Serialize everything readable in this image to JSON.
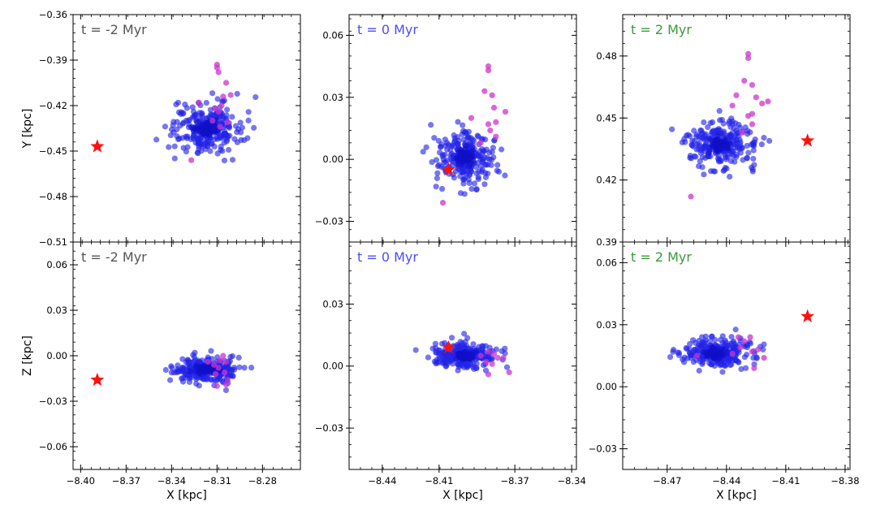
{
  "colors": {
    "gray_title": "#555555",
    "blue_title": "#4c4cff",
    "green_title": "#3a9a3a",
    "blue_points": "#2323e8",
    "magenta_points": "#cc33cc",
    "star": "#ff1010"
  },
  "chart_data": [
    {
      "type": "scatter",
      "title": "t = -2 Myr",
      "title_color": "gray_title",
      "xlabel": "",
      "ylabel": "Y [kpc]",
      "xlim": [
        -8.405,
        -8.255
      ],
      "ylim": [
        -0.51,
        -0.36
      ],
      "xticks": [],
      "xtick_labels": [],
      "yticks": [
        -0.36,
        -0.39,
        -0.42,
        -0.45,
        -0.48,
        -0.51
      ],
      "ytick_labels": [
        "−0.36",
        "−0.39",
        "−0.42",
        "−0.45",
        "−0.48",
        "−0.51"
      ],
      "blue_center": [
        -8.317,
        -0.435
      ],
      "blue_spread": [
        0.012,
        0.0085
      ],
      "magenta_points": [
        [
          -8.31,
          -0.393
        ],
        [
          -8.31,
          -0.395
        ],
        [
          -8.309,
          -0.398
        ],
        [
          -8.304,
          -0.405
        ],
        [
          -8.306,
          -0.414
        ],
        [
          -8.301,
          -0.413
        ],
        [
          -8.307,
          -0.42
        ],
        [
          -8.311,
          -0.422
        ],
        [
          -8.309,
          -0.424
        ],
        [
          -8.322,
          -0.418
        ],
        [
          -8.313,
          -0.43
        ],
        [
          -8.303,
          -0.431
        ],
        [
          -8.327,
          -0.456
        ],
        [
          -8.308,
          -0.434
        ]
      ],
      "star": [
        -8.389,
        -0.447
      ]
    },
    {
      "type": "scatter",
      "title": "t = 0 Myr",
      "title_color": "blue_title",
      "xlabel": "",
      "ylabel": "",
      "xlim": [
        -8.4575,
        -8.3375
      ],
      "ylim": [
        -0.04,
        0.07
      ],
      "xticks": [],
      "xtick_labels": [],
      "yticks": [
        0.06,
        0.03,
        0.0,
        -0.03
      ],
      "ytick_labels": [
        "0.06",
        "0.03",
        "0.00",
        "−0.03"
      ],
      "blue_center": [
        -8.396,
        0.001
      ],
      "blue_spread": [
        0.0075,
        0.0065
      ],
      "magenta_points": [
        [
          -8.384,
          0.045
        ],
        [
          -8.384,
          0.043
        ],
        [
          -8.386,
          0.033
        ],
        [
          -8.382,
          0.031
        ],
        [
          -8.381,
          0.025
        ],
        [
          -8.375,
          0.023
        ],
        [
          -8.38,
          0.018
        ],
        [
          -8.384,
          0.017
        ],
        [
          -8.383,
          0.014
        ],
        [
          -8.393,
          0.02
        ],
        [
          -8.38,
          0.011
        ],
        [
          -8.388,
          0.008
        ],
        [
          -8.408,
          -0.021
        ]
      ],
      "star": [
        -8.405,
        -0.005
      ]
    },
    {
      "type": "scatter",
      "title": "t = 2 Myr",
      "title_color": "green_title",
      "xlabel": "",
      "ylabel": "",
      "xlim": [
        -8.4925,
        -8.3775
      ],
      "ylim": [
        0.39,
        0.5
      ],
      "xticks": [],
      "xtick_labels": [],
      "yticks": [
        0.48,
        0.45,
        0.42,
        0.39
      ],
      "ytick_labels": [
        "0.48",
        "0.45",
        "0.42",
        "0.39"
      ],
      "blue_center": [
        -8.443,
        0.437
      ],
      "blue_spread": [
        0.009,
        0.006
      ],
      "magenta_points": [
        [
          -8.429,
          0.481
        ],
        [
          -8.429,
          0.479
        ],
        [
          -8.431,
          0.468
        ],
        [
          -8.427,
          0.466
        ],
        [
          -8.425,
          0.46
        ],
        [
          -8.419,
          0.458
        ],
        [
          -8.422,
          0.457
        ],
        [
          -8.435,
          0.461
        ],
        [
          -8.437,
          0.456
        ],
        [
          -8.427,
          0.452
        ],
        [
          -8.429,
          0.451
        ],
        [
          -8.432,
          0.443
        ],
        [
          -8.427,
          0.447
        ],
        [
          -8.458,
          0.412
        ]
      ],
      "star": [
        -8.399,
        0.439
      ]
    },
    {
      "type": "scatter",
      "title": "t = -2 Myr",
      "title_color": "gray_title",
      "xlabel": "X [kpc]",
      "ylabel": "Z [kpc]",
      "xlim": [
        -8.405,
        -8.255
      ],
      "ylim": [
        -0.075,
        0.075
      ],
      "xticks": [
        -8.4,
        -8.37,
        -8.34,
        -8.31,
        -8.28
      ],
      "xtick_labels": [
        "−8.40",
        "−8.37",
        "−8.34",
        "−8.31",
        "−8.28"
      ],
      "yticks": [
        0.06,
        0.03,
        0.0,
        -0.03,
        -0.06
      ],
      "ytick_labels": [
        "0.06",
        "0.03",
        "0.00",
        "−0.03",
        "−0.06"
      ],
      "blue_center": [
        -8.317,
        -0.009
      ],
      "blue_spread": [
        0.011,
        0.0045
      ],
      "magenta_points": [
        [
          -8.308,
          -0.003
        ],
        [
          -8.306,
          0.0
        ],
        [
          -8.304,
          -0.004
        ],
        [
          -8.309,
          -0.008
        ],
        [
          -8.311,
          -0.012
        ],
        [
          -8.305,
          -0.011
        ],
        [
          -8.303,
          -0.016
        ],
        [
          -8.304,
          -0.019
        ],
        [
          -8.31,
          -0.02
        ],
        [
          -8.312,
          -0.006
        ],
        [
          -8.316,
          -0.004
        ]
      ],
      "star": [
        -8.389,
        -0.016
      ]
    },
    {
      "type": "scatter",
      "title": "t = 0 Myr",
      "title_color": "blue_title",
      "xlabel": "X [kpc]",
      "ylabel": "",
      "xlim": [
        -8.4575,
        -8.3375
      ],
      "ylim": [
        -0.05,
        0.06
      ],
      "xticks": [
        -8.44,
        -8.41,
        -8.37,
        -8.34
      ],
      "xtick_labels": [
        "−8.44",
        "−8.41",
        "−8.37",
        "−8.34"
      ],
      "yticks": [
        0.03,
        0.0,
        -0.03
      ],
      "ytick_labels": [
        "0.03",
        "0.00",
        "−0.03"
      ],
      "blue_center": [
        -8.397,
        0.005
      ],
      "blue_spread": [
        0.008,
        0.003
      ],
      "magenta_points": [
        [
          -8.384,
          0.007
        ],
        [
          -8.381,
          0.006
        ],
        [
          -8.379,
          0.004
        ],
        [
          -8.385,
          0.002
        ],
        [
          -8.382,
          0.001
        ],
        [
          -8.376,
          0.004
        ],
        [
          -8.373,
          -0.003
        ],
        [
          -8.384,
          -0.004
        ],
        [
          -8.388,
          0.005
        ]
      ],
      "star": [
        -8.405,
        0.009
      ]
    },
    {
      "type": "scatter",
      "title": "t = 2 Myr",
      "title_color": "green_title",
      "xlabel": "X [kpc]",
      "ylabel": "",
      "xlim": [
        -8.4925,
        -8.3775
      ],
      "ylim": [
        -0.04,
        0.07
      ],
      "xticks": [
        -8.47,
        -8.44,
        -8.41,
        -8.38
      ],
      "xtick_labels": [
        "−8.47",
        "−8.44",
        "−8.41",
        "−8.38"
      ],
      "yticks": [
        0.06,
        0.03,
        0.0,
        -0.03
      ],
      "ytick_labels": [
        "0.06",
        "0.03",
        "0.00",
        "−0.03"
      ],
      "blue_center": [
        -8.446,
        0.016
      ],
      "blue_spread": [
        0.009,
        0.0035
      ],
      "magenta_points": [
        [
          -8.434,
          0.024
        ],
        [
          -8.431,
          0.022
        ],
        [
          -8.428,
          0.024
        ],
        [
          -8.424,
          0.018
        ],
        [
          -8.421,
          0.014
        ],
        [
          -8.427,
          0.017
        ],
        [
          -8.433,
          0.019
        ],
        [
          -8.426,
          0.009
        ],
        [
          -8.437,
          0.016
        ],
        [
          -8.455,
          0.015
        ]
      ],
      "star": [
        -8.399,
        0.034
      ]
    }
  ]
}
